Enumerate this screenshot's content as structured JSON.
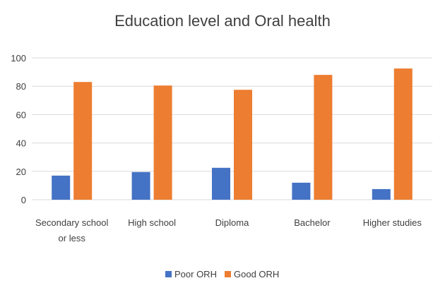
{
  "chart_data": {
    "type": "bar",
    "title": "Education level and Oral health",
    "categories": [
      [
        "Secondary school",
        "or less"
      ],
      [
        "High school"
      ],
      [
        "Diploma"
      ],
      [
        "Bachelor"
      ],
      [
        "Higher studies"
      ]
    ],
    "series": [
      {
        "name": "Poor ORH",
        "color": "#4472c4",
        "values": [
          17,
          19.5,
          22.5,
          12,
          7.5
        ]
      },
      {
        "name": "Good ORH",
        "color": "#ed7d31",
        "values": [
          83,
          80.5,
          77.5,
          88,
          92.5
        ]
      }
    ],
    "y_ticks": [
      "0",
      "20",
      "40",
      "60",
      "80",
      "100"
    ],
    "ylim": [
      0,
      100
    ],
    "grid": true,
    "legend_position": "bottom"
  }
}
